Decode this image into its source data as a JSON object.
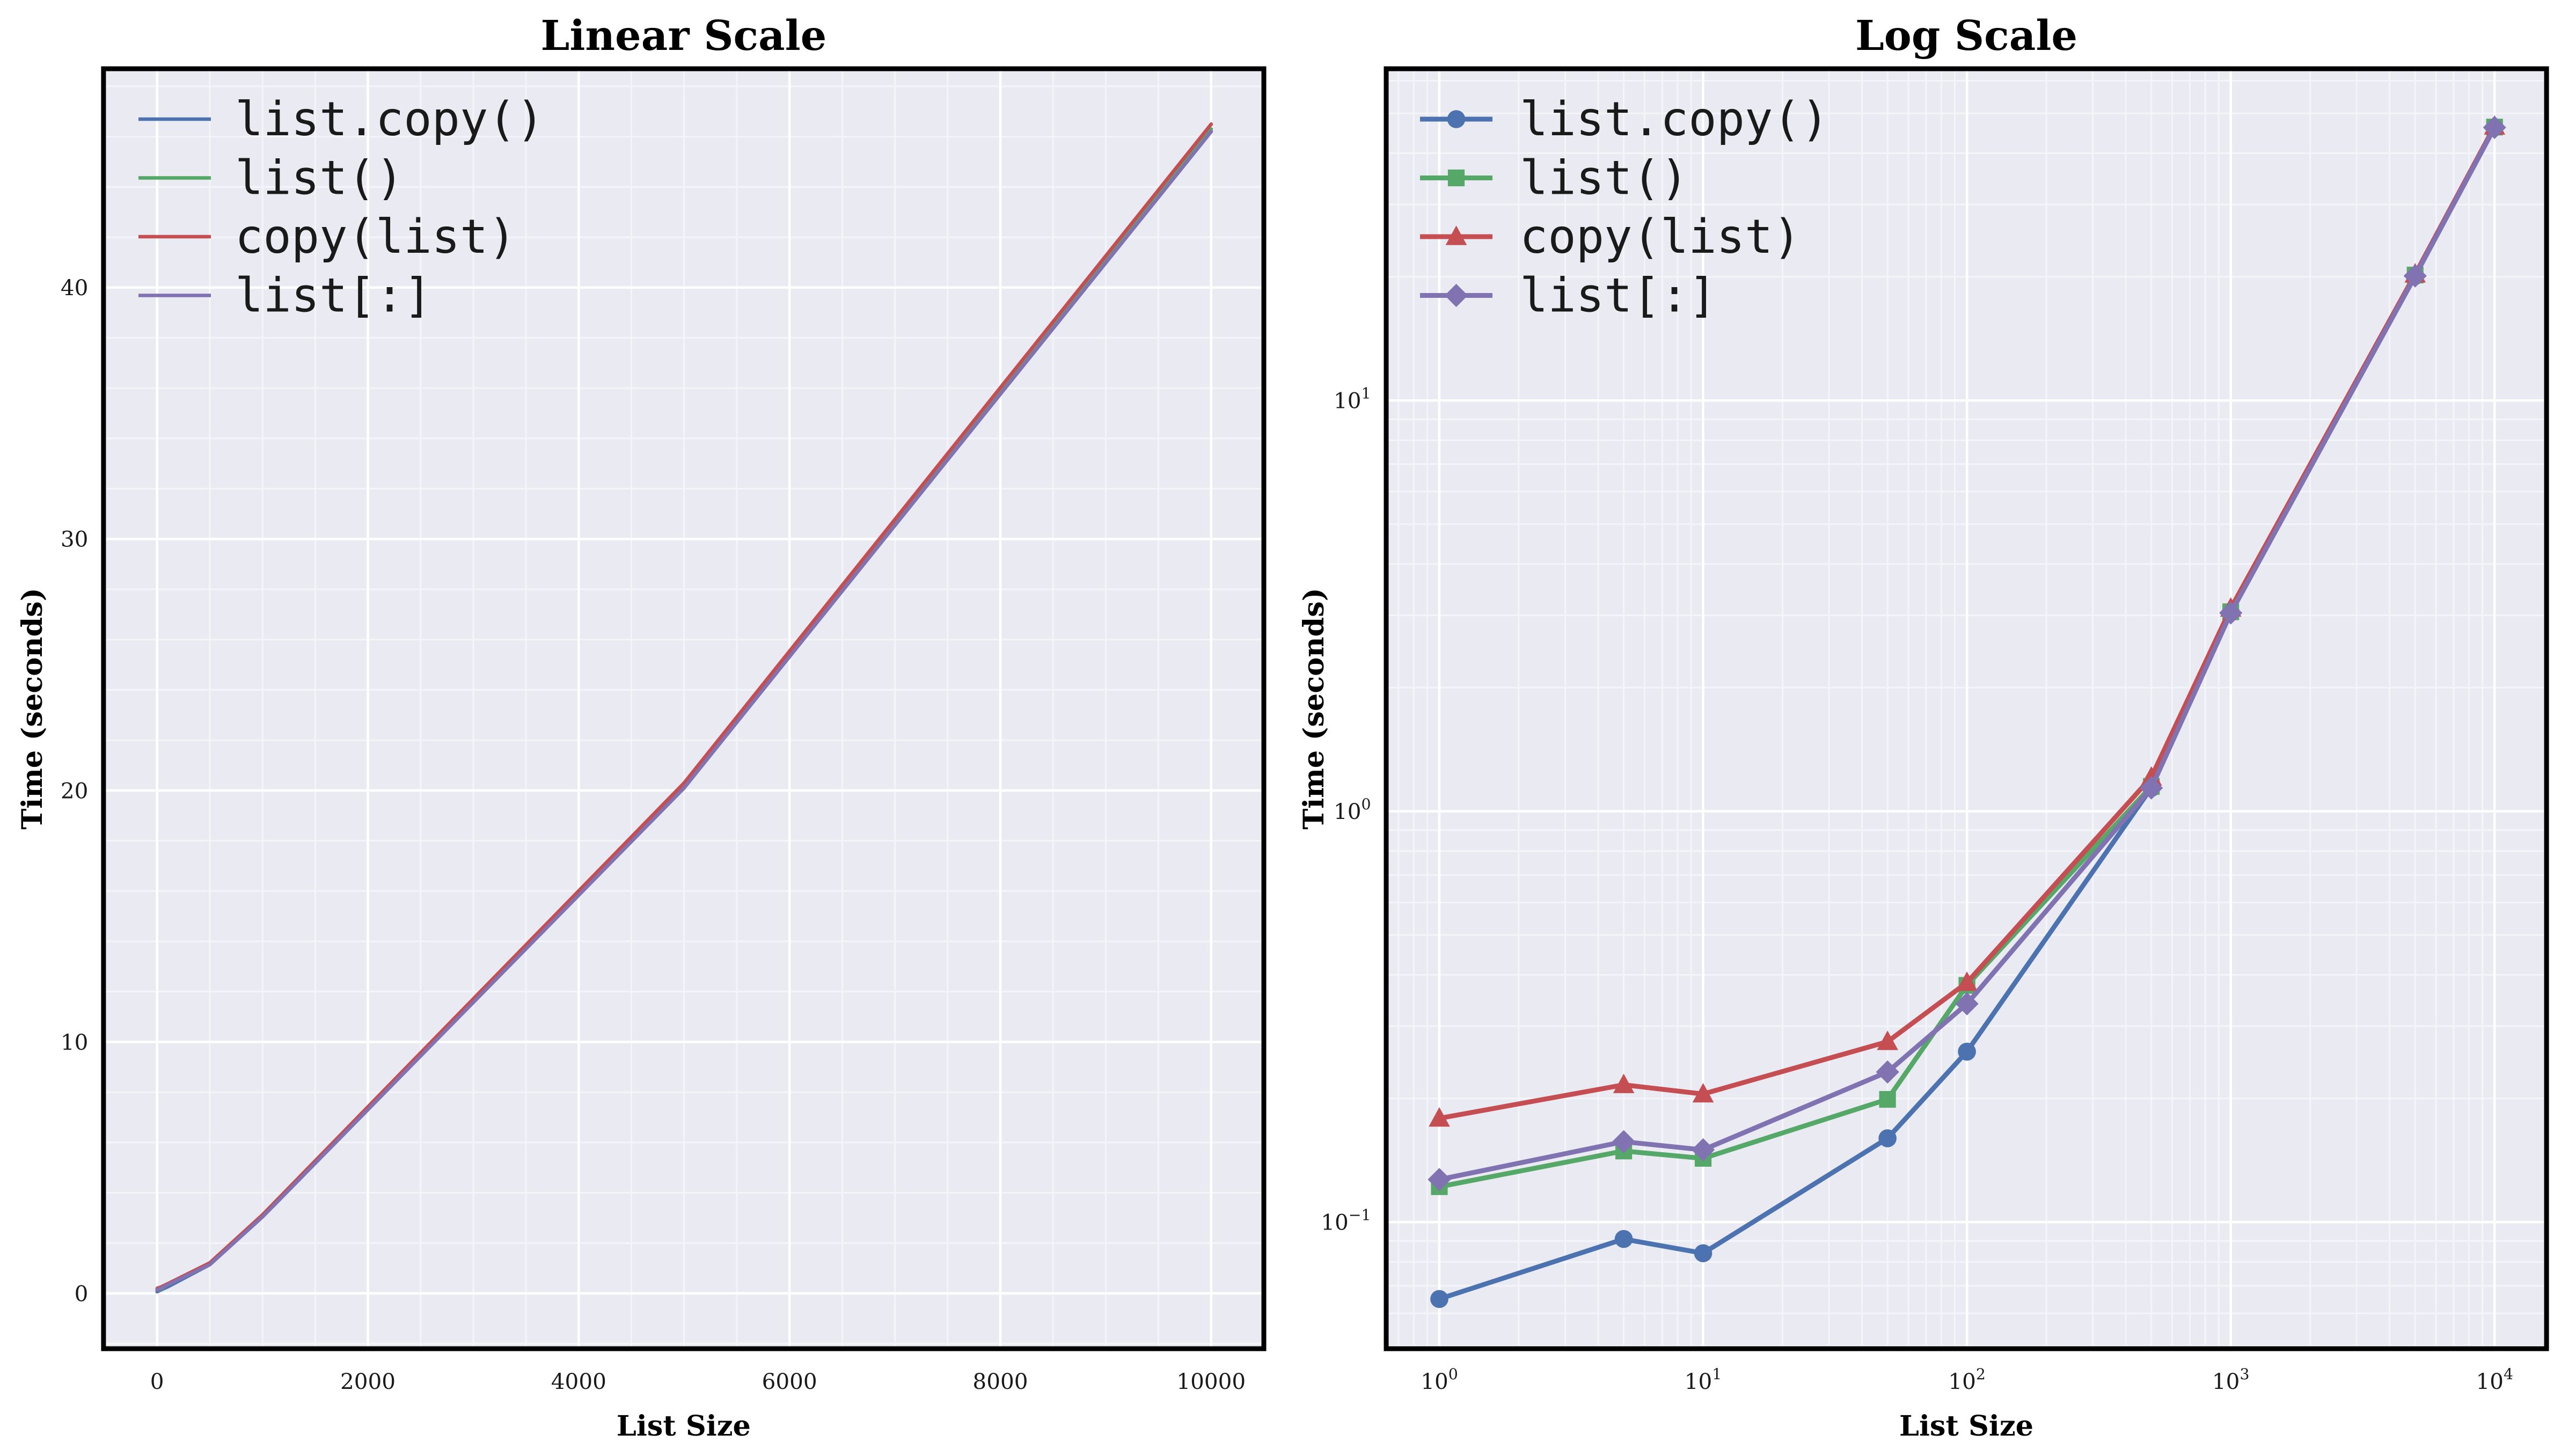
{
  "figure": {
    "background": "#ffffff",
    "axes_background": "#eaeaf2",
    "grid_color": "#ffffff",
    "spine_color": "#000000",
    "text_color": "#1a1a1a"
  },
  "charts": [
    {
      "id": "linear",
      "title": "Linear Scale",
      "xlabel": "List Size",
      "ylabel": "Time (seconds)",
      "xscale": "linear",
      "yscale": "linear",
      "xlim": [
        -508,
        10500
      ],
      "ylim": [
        -2.2,
        48.7
      ],
      "xticks": [
        {
          "v": 0,
          "label": "0"
        },
        {
          "v": 2000,
          "label": "2000"
        },
        {
          "v": 4000,
          "label": "4000"
        },
        {
          "v": 6000,
          "label": "6000"
        },
        {
          "v": 8000,
          "label": "8000"
        },
        {
          "v": 10000,
          "label": "10000"
        }
      ],
      "yticks": [
        {
          "v": 0,
          "label": "0"
        },
        {
          "v": 10,
          "label": "10"
        },
        {
          "v": 20,
          "label": "20"
        },
        {
          "v": 30,
          "label": "30"
        },
        {
          "v": 40,
          "label": "40"
        }
      ],
      "minor": {
        "x_step": 500,
        "y_step": 2
      },
      "show_markers": false
    },
    {
      "id": "log",
      "title": "Log Scale",
      "xlabel": "List Size",
      "ylabel": "Time (seconds)",
      "xscale": "log",
      "yscale": "log",
      "xlim": [
        0.629,
        15740
      ],
      "ylim": [
        0.0492,
        64.2
      ],
      "xticks": [
        {
          "v": 1,
          "label": "10^0"
        },
        {
          "v": 10,
          "label": "10^1"
        },
        {
          "v": 100,
          "label": "10^2"
        },
        {
          "v": 1000,
          "label": "10^3"
        },
        {
          "v": 10000,
          "label": "10^4"
        }
      ],
      "yticks": [
        {
          "v": 0.1,
          "label": "10^-1"
        },
        {
          "v": 1,
          "label": "10^0"
        },
        {
          "v": 10,
          "label": "10^1"
        }
      ],
      "minor": "log",
      "show_markers": true
    }
  ],
  "chart_data": {
    "type": "line",
    "title": "",
    "subplot_titles": [
      "Linear Scale",
      "Log Scale"
    ],
    "xlabel": "List Size",
    "ylabel": "Time (seconds)",
    "x": [
      1,
      5,
      10,
      50,
      100,
      500,
      1000,
      5000,
      10000
    ],
    "series": [
      {
        "name": "list.copy()",
        "color": "#4c72b0",
        "marker": "circle",
        "values": [
          0.065,
          0.091,
          0.084,
          0.16,
          0.26,
          1.14,
          3.05,
          20.1,
          46.2
        ]
      },
      {
        "name": "list()",
        "color": "#55a868",
        "marker": "square",
        "values": [
          0.122,
          0.149,
          0.143,
          0.199,
          0.377,
          1.15,
          3.06,
          20.2,
          46.3
        ]
      },
      {
        "name": "copy(list)",
        "color": "#c44e52",
        "marker": "triangle",
        "values": [
          0.179,
          0.216,
          0.205,
          0.275,
          0.383,
          1.21,
          3.12,
          20.3,
          46.5
        ]
      },
      {
        "name": "list[:]",
        "color": "#8172b2",
        "marker": "diamond",
        "values": [
          0.127,
          0.157,
          0.15,
          0.232,
          0.34,
          1.14,
          3.04,
          20.1,
          46.2
        ]
      }
    ],
    "legend_position": "upper-left",
    "grid": true
  }
}
